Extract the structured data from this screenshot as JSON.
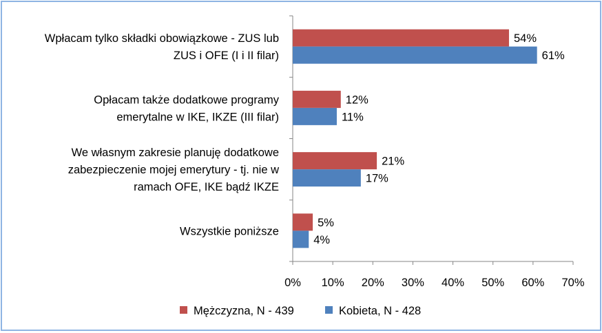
{
  "chart_data": {
    "type": "bar",
    "orientation": "horizontal",
    "categories": [
      [
        "Wpłacam tylko składki obowiązkowe - ZUS lub",
        "ZUS i OFE (I i II filar)"
      ],
      [
        "Opłacam także dodatkowe programy",
        "emerytalne w IKE, IKZE (III filar)"
      ],
      [
        "We własnym zakresie planuję dodatkowe",
        "zabezpieczenie mojej emerytury - tj. nie w",
        "ramach OFE, IKE bądź IKZE"
      ],
      [
        "Wszystkie poniższe"
      ]
    ],
    "series": [
      {
        "name": "Mężczyzna, N - 439",
        "color": "#c0504d",
        "values": [
          54,
          12,
          21,
          5
        ],
        "labels": [
          "54%",
          "12%",
          "21%",
          "5%"
        ]
      },
      {
        "name": "Kobieta, N - 428",
        "color": "#4f81bd",
        "values": [
          61,
          11,
          17,
          4
        ],
        "labels": [
          "61%",
          "11%",
          "17%",
          "4%"
        ]
      }
    ],
    "xlim": [
      0,
      70
    ],
    "xticks": [
      0,
      10,
      20,
      30,
      40,
      50,
      60,
      70
    ],
    "xtick_labels": [
      "0%",
      "10%",
      "20%",
      "30%",
      "40%",
      "50%",
      "60%",
      "70%"
    ],
    "grid": false,
    "legend_position": "bottom",
    "title": "",
    "xlabel": "",
    "ylabel": ""
  }
}
